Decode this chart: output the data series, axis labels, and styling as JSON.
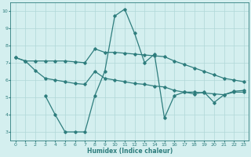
{
  "line1_x": [
    0,
    1,
    2,
    3,
    4,
    5,
    6,
    7,
    8,
    9,
    10,
    11,
    12,
    13,
    14,
    15,
    16,
    17,
    18,
    19,
    20,
    21,
    22,
    23
  ],
  "line1_y": [
    7.3,
    7.1,
    7.1,
    7.1,
    7.1,
    7.1,
    7.05,
    7.0,
    7.8,
    7.6,
    7.6,
    7.55,
    7.5,
    7.45,
    7.4,
    7.35,
    7.1,
    6.9,
    6.7,
    6.5,
    6.3,
    6.1,
    6.0,
    5.9
  ],
  "line2_x": [
    0,
    1,
    2,
    3,
    4,
    5,
    6,
    7,
    8,
    9,
    10,
    11,
    12,
    13,
    14,
    15,
    16,
    17,
    18,
    19,
    20,
    21,
    22,
    23
  ],
  "line2_y": [
    7.3,
    7.1,
    6.55,
    6.1,
    6.0,
    5.9,
    5.8,
    5.75,
    6.5,
    6.1,
    6.0,
    5.9,
    5.8,
    5.75,
    5.65,
    5.6,
    5.4,
    5.3,
    5.3,
    5.25,
    5.2,
    5.15,
    5.3,
    5.3
  ],
  "line3_x": [
    3,
    4,
    5,
    6,
    7,
    8,
    9,
    10,
    11,
    12,
    13,
    14,
    15,
    16,
    17,
    18,
    19,
    20,
    21,
    22,
    23
  ],
  "line3_y": [
    5.1,
    4.0,
    3.0,
    3.0,
    3.0,
    5.1,
    6.5,
    9.7,
    10.1,
    8.7,
    7.0,
    7.5,
    3.8,
    5.1,
    5.3,
    5.2,
    5.3,
    4.7,
    5.15,
    5.35,
    5.4
  ],
  "color": "#2e7d7d",
  "bg_color": "#d4efef",
  "grid_color": "#b0d8d8",
  "xlabel": "Humidex (Indice chaleur)",
  "xlim": [
    -0.5,
    23.5
  ],
  "ylim": [
    2.5,
    10.5
  ],
  "yticks": [
    3,
    4,
    5,
    6,
    7,
    8,
    9,
    10
  ],
  "xticks": [
    0,
    1,
    2,
    3,
    4,
    5,
    6,
    7,
    8,
    9,
    10,
    11,
    12,
    13,
    14,
    15,
    16,
    17,
    18,
    19,
    20,
    21,
    22,
    23
  ]
}
